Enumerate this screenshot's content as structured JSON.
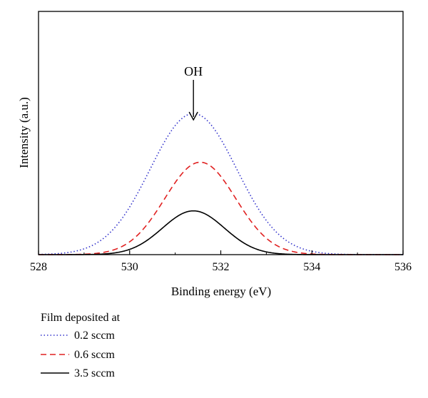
{
  "chart_data": {
    "type": "line",
    "xlabel": "Binding energy (eV)",
    "ylabel": "Intensity (a.u.)",
    "xlim": [
      528,
      536
    ],
    "ylim": [
      0,
      1
    ],
    "x_ticks": [
      528,
      530,
      532,
      534,
      536
    ],
    "y_ticks_shown": false,
    "grid": false,
    "legend": {
      "title": "Film deposited at",
      "placement": "below-left"
    },
    "annotation": {
      "text": "OH",
      "x": 531.4,
      "arrow": "down"
    },
    "series": [
      {
        "name": "0.2 sccm",
        "color": "#3333cc",
        "line_style": "dotted",
        "peak_center": 531.4,
        "peak_height": 0.58,
        "peak_sigma": 0.95
      },
      {
        "name": "0.6 sccm",
        "color": "#e02020",
        "line_style": "dashed",
        "peak_center": 531.55,
        "peak_height": 0.38,
        "peak_sigma": 0.78
      },
      {
        "name": "3.5 sccm",
        "color": "#000000",
        "line_style": "solid",
        "peak_center": 531.4,
        "peak_height": 0.18,
        "peak_sigma": 0.68
      }
    ]
  }
}
